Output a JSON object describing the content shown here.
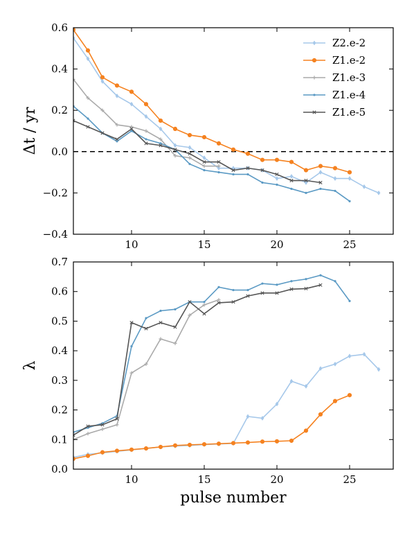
{
  "colors": {
    "Z2.e-2": "#a6c8ea",
    "Z1.e-2": "#f58220",
    "Z1.e-3": "#aaaaaa",
    "Z1.e-4": "#5b9ac4",
    "Z1.e-5": "#555555"
  },
  "chart_data": [
    {
      "type": "line",
      "xlabel": "",
      "ylabel": "Δt / yr",
      "xlim": [
        6,
        28
      ],
      "ylim": [
        -0.4,
        0.6
      ],
      "xticks": [
        10,
        15,
        20,
        25
      ],
      "yticks": [
        -0.4,
        -0.2,
        0.0,
        0.2,
        0.4,
        0.6
      ],
      "ytick_labels": [
        "−0.4",
        "−0.2",
        "0.0",
        "0.2",
        "0.4",
        "0.6"
      ],
      "reference_line": {
        "y": 0,
        "style": "dashed"
      },
      "legend": {
        "placement": "top-right"
      },
      "series": [
        {
          "name": "Z2.e-2",
          "marker": "diamond",
          "x": [
            6,
            7,
            8,
            9,
            10,
            11,
            12,
            13,
            14,
            15,
            16,
            17,
            18,
            19,
            20,
            21,
            22,
            23,
            24,
            25,
            26,
            27
          ],
          "y": [
            0.55,
            0.45,
            0.34,
            0.27,
            0.23,
            0.17,
            0.11,
            0.03,
            0.02,
            -0.03,
            -0.08,
            -0.08,
            -0.08,
            -0.09,
            -0.13,
            -0.12,
            -0.15,
            -0.1,
            -0.13,
            -0.13,
            -0.17,
            -0.2
          ]
        },
        {
          "name": "Z1.e-2",
          "marker": "circle",
          "x": [
            6,
            7,
            8,
            9,
            10,
            11,
            12,
            13,
            14,
            15,
            16,
            17,
            18,
            19,
            20,
            21,
            22,
            23,
            24,
            25
          ],
          "y": [
            0.59,
            0.49,
            0.36,
            0.32,
            0.29,
            0.23,
            0.15,
            0.11,
            0.08,
            0.07,
            0.04,
            0.01,
            -0.01,
            -0.04,
            -0.04,
            -0.05,
            -0.09,
            -0.07,
            -0.08,
            -0.1
          ]
        },
        {
          "name": "Z1.e-3",
          "marker": "plus",
          "x": [
            6,
            7,
            8,
            9,
            10,
            11,
            12,
            13,
            14,
            15,
            16
          ],
          "y": [
            0.35,
            0.26,
            0.2,
            0.13,
            0.12,
            0.1,
            0.06,
            -0.02,
            -0.03,
            -0.07,
            -0.07
          ]
        },
        {
          "name": "Z1.e-4",
          "marker": "dot",
          "x": [
            6,
            7,
            8,
            9,
            10,
            11,
            12,
            13,
            14,
            15,
            16,
            17,
            18,
            19,
            20,
            21,
            22,
            23,
            24,
            25
          ],
          "y": [
            0.22,
            0.16,
            0.09,
            0.05,
            0.1,
            0.06,
            0.04,
            0.01,
            -0.06,
            -0.09,
            -0.1,
            -0.11,
            -0.11,
            -0.15,
            -0.16,
            -0.18,
            -0.2,
            -0.18,
            -0.19,
            -0.24
          ]
        },
        {
          "name": "Z1.e-5",
          "marker": "x",
          "x": [
            6,
            7,
            8,
            9,
            10,
            11,
            12,
            13,
            14,
            15,
            16,
            17,
            18,
            19,
            20,
            21,
            22,
            23
          ],
          "y": [
            0.15,
            0.12,
            0.09,
            0.06,
            0.11,
            0.04,
            0.03,
            0.01,
            -0.01,
            -0.05,
            -0.05,
            -0.09,
            -0.08,
            -0.09,
            -0.11,
            -0.14,
            -0.14,
            -0.15
          ]
        }
      ]
    },
    {
      "type": "line",
      "xlabel": "pulse number",
      "ylabel": "λ",
      "xlim": [
        6,
        28
      ],
      "ylim": [
        0.0,
        0.7
      ],
      "xticks": [
        10,
        15,
        20,
        25
      ],
      "yticks": [
        0.0,
        0.1,
        0.2,
        0.3,
        0.4,
        0.5,
        0.6,
        0.7
      ],
      "ytick_labels": [
        "0.0",
        "0.1",
        "0.2",
        "0.3",
        "0.4",
        "0.5",
        "0.6",
        "0.7"
      ],
      "series": [
        {
          "name": "Z2.e-2",
          "marker": "diamond",
          "x": [
            6,
            7,
            8,
            9,
            10,
            11,
            12,
            13,
            14,
            15,
            16,
            17,
            18,
            19,
            20,
            21,
            22,
            23,
            24,
            25,
            26,
            27
          ],
          "y": [
            0.04,
            0.05,
            0.055,
            0.06,
            0.065,
            0.07,
            0.075,
            0.078,
            0.08,
            0.083,
            0.085,
            0.087,
            0.178,
            0.172,
            0.22,
            0.297,
            0.28,
            0.34,
            0.355,
            0.382,
            0.388,
            0.337
          ]
        },
        {
          "name": "Z1.e-2",
          "marker": "circle",
          "x": [
            6,
            7,
            8,
            9,
            10,
            11,
            12,
            13,
            14,
            15,
            16,
            17,
            18,
            19,
            20,
            21,
            22,
            23,
            24,
            25
          ],
          "y": [
            0.035,
            0.045,
            0.057,
            0.062,
            0.066,
            0.07,
            0.075,
            0.08,
            0.082,
            0.084,
            0.086,
            0.088,
            0.09,
            0.093,
            0.094,
            0.096,
            0.13,
            0.185,
            0.23,
            0.25
          ]
        },
        {
          "name": "Z1.e-3",
          "marker": "plus",
          "x": [
            6,
            7,
            8,
            9,
            10,
            11,
            12,
            13,
            14,
            15,
            16
          ],
          "y": [
            0.1,
            0.12,
            0.135,
            0.15,
            0.325,
            0.355,
            0.44,
            0.425,
            0.52,
            0.555,
            0.572
          ]
        },
        {
          "name": "Z1.e-4",
          "marker": "dot",
          "x": [
            6,
            7,
            8,
            9,
            10,
            11,
            12,
            13,
            14,
            15,
            16,
            17,
            18,
            19,
            20,
            21,
            22,
            23,
            24,
            25
          ],
          "y": [
            0.125,
            0.14,
            0.155,
            0.18,
            0.415,
            0.51,
            0.535,
            0.54,
            0.565,
            0.565,
            0.615,
            0.605,
            0.605,
            0.627,
            0.623,
            0.635,
            0.642,
            0.655,
            0.635,
            0.568
          ]
        },
        {
          "name": "Z1.e-5",
          "marker": "x",
          "x": [
            6,
            7,
            8,
            9,
            10,
            11,
            12,
            13,
            14,
            15,
            16,
            17,
            18,
            19,
            20,
            21,
            22,
            23
          ],
          "y": [
            0.115,
            0.145,
            0.15,
            0.17,
            0.495,
            0.475,
            0.495,
            0.48,
            0.565,
            0.525,
            0.562,
            0.565,
            0.585,
            0.595,
            0.595,
            0.608,
            0.61,
            0.622
          ]
        }
      ]
    }
  ]
}
